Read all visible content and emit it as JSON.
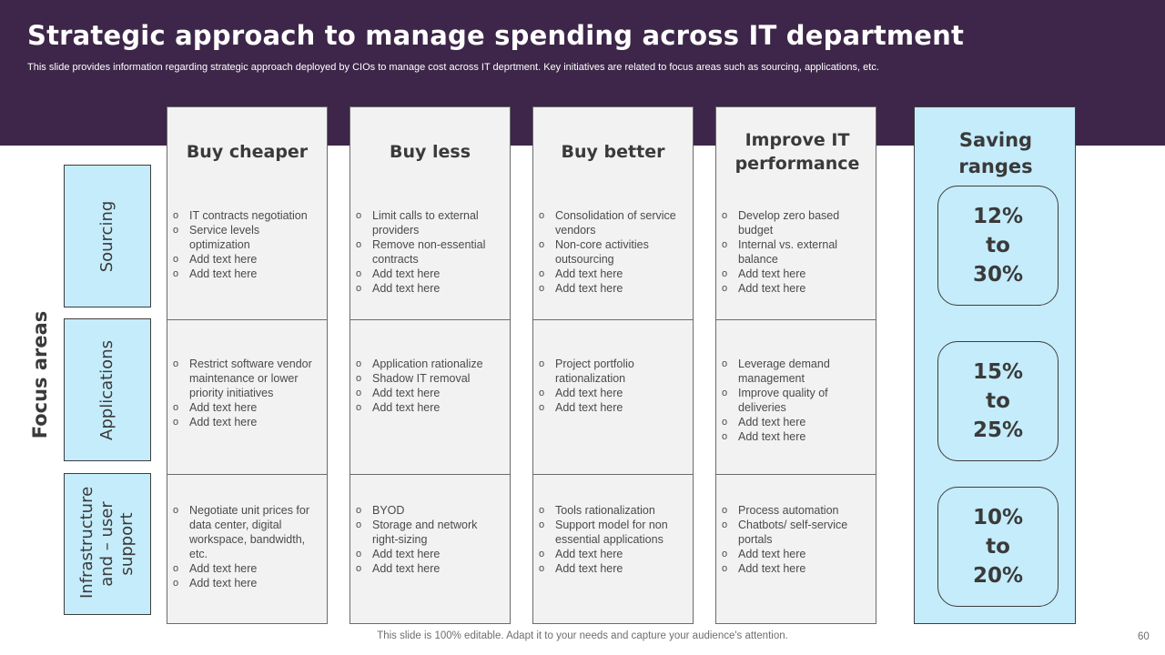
{
  "header": {
    "title": "Strategic approach to manage spending across IT department",
    "subtitle": "This slide provides information regarding strategic approach deployed by CIOs to manage cost across IT deprtment. Key initiatives are related to focus areas such as sourcing, applications, etc."
  },
  "focus_areas": {
    "label": "Focus areas",
    "rows": [
      "Sourcing",
      "Applications",
      "Infrastructure and – user support"
    ]
  },
  "columns": [
    {
      "heading": "Buy cheaper",
      "cells": [
        [
          "IT contracts negotiation",
          "Service levels optimization",
          "Add text here",
          "Add text here"
        ],
        [
          "Restrict software vendor maintenance or lower priority initiatives",
          "Add text here",
          "Add text here"
        ],
        [
          "Negotiate unit prices for data center, digital workspace, bandwidth, etc.",
          "Add text here",
          "Add text here"
        ]
      ]
    },
    {
      "heading": "Buy less",
      "cells": [
        [
          "Limit calls to external providers",
          "Remove non-essential contracts",
          "Add text here",
          "Add text here"
        ],
        [
          "Application rationalize",
          "Shadow IT removal",
          "Add text here",
          "Add text here"
        ],
        [
          "BYOD",
          "Storage and network right-sizing",
          "Add text here",
          "Add text here"
        ]
      ]
    },
    {
      "heading": "Buy better",
      "cells": [
        [
          "Consolidation of service vendors",
          "Non-core activities outsourcing",
          "Add text here",
          "Add text here"
        ],
        [
          "Project portfolio rationalization",
          "Add text here",
          "Add text here"
        ],
        [
          "Tools rationalization",
          "Support model for non essential applications",
          "Add text here",
          "Add text here"
        ]
      ]
    },
    {
      "heading": "Improve IT performance",
      "cells": [
        [
          "Develop zero based budget",
          "Internal vs. external balance",
          "Add text here",
          "Add text here"
        ],
        [
          "Leverage demand management",
          "Improve quality of deliveries",
          "Add text here",
          "Add text here"
        ],
        [
          "Process automation",
          "Chatbots/ self-service portals",
          "Add text here",
          "Add text here"
        ]
      ]
    }
  ],
  "saving": {
    "heading": "Saving ranges",
    "ranges": [
      [
        "12%",
        "to",
        "30%"
      ],
      [
        "15%",
        "to",
        "25%"
      ],
      [
        "10%",
        "to",
        "20%"
      ]
    ]
  },
  "footer": {
    "note": "This slide is 100% editable. Adapt it to your needs and capture your audience's attention.",
    "page_number": "60"
  }
}
